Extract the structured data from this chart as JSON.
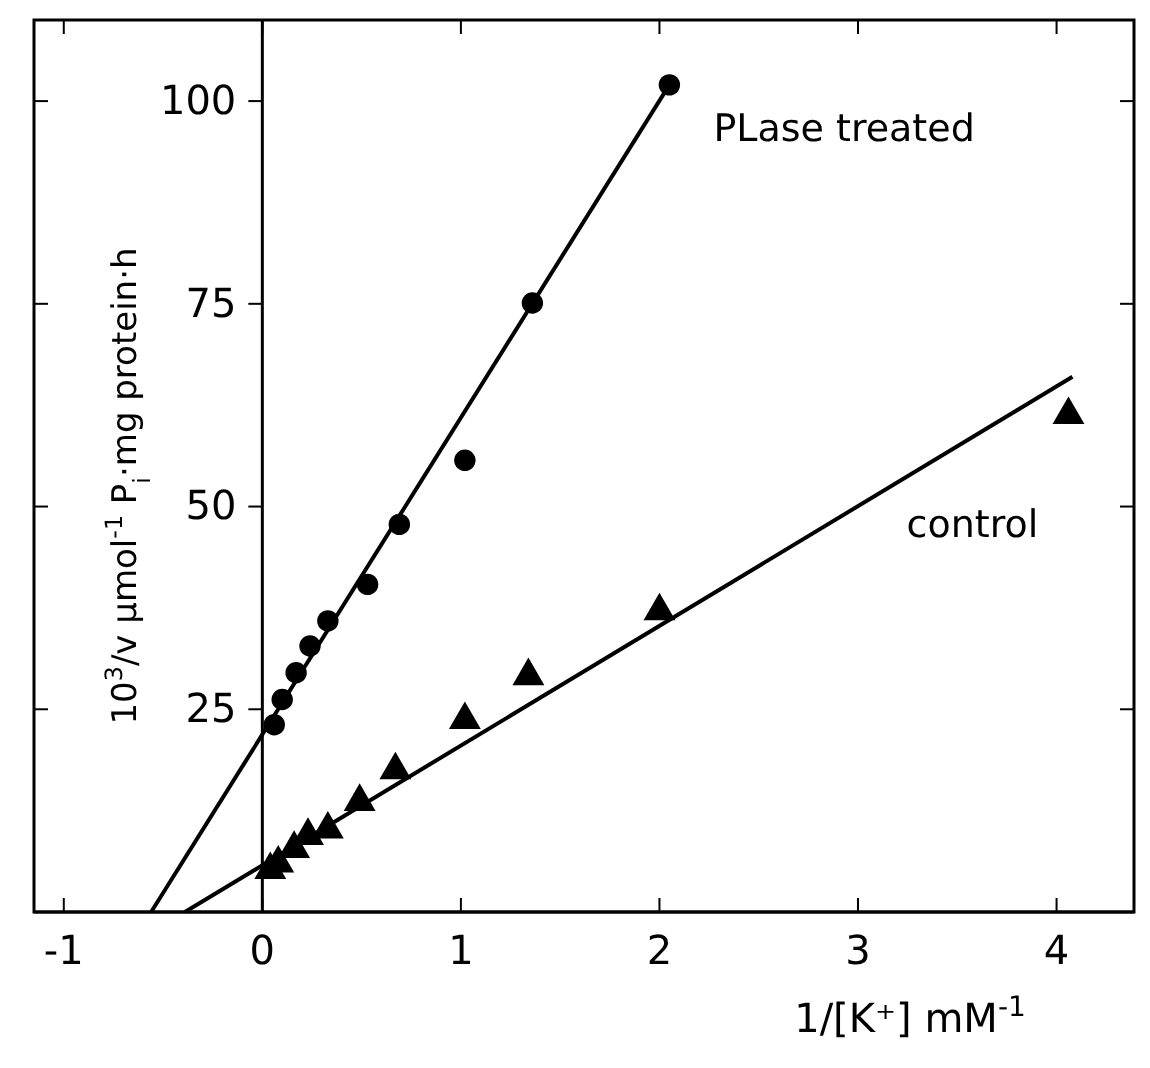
{
  "chart_data": {
    "type": "scatter",
    "xlabel": "1/[K⁺]  mM$^{-1}$",
    "ylabel": "10$^{3}$/v μmol$^{-1}$ P$_{i}$·mg protein·h",
    "xlim": [
      -1.15,
      4.39
    ],
    "ylim": [
      0,
      110
    ],
    "xticks": [
      -1,
      0,
      1,
      2,
      3,
      4
    ],
    "yticks": [
      {
        "value": 0,
        "label": null
      },
      25,
      50,
      75,
      100
    ],
    "grid": false,
    "legend": "right",
    "series": [
      {
        "name": "PLase treated",
        "marker": "circle",
        "color": "#000000",
        "x": [
          0.06,
          0.1,
          0.17,
          0.24,
          0.33,
          0.53,
          0.69,
          1.02,
          1.36,
          2.05
        ],
        "values": [
          23.1,
          26.2,
          29.5,
          32.8,
          35.9,
          40.4,
          47.8,
          55.7,
          75.1,
          102
        ]
      },
      {
        "name": "control",
        "marker": "triangle",
        "color": "#000000",
        "x": [
          0.04,
          0.08,
          0.16,
          0.23,
          0.33,
          0.49,
          0.67,
          1.02,
          1.34,
          2.0,
          4.06
        ],
        "values": [
          5.2,
          6.0,
          7.8,
          9.4,
          10.2,
          13.6,
          17.5,
          23.7,
          29.1,
          37.1,
          61.3
        ]
      },
      {
        "type": "line",
        "marker": "none",
        "line_style": "solid",
        "color": "#000000",
        "x": [
          -0.56,
          2.05
        ],
        "values": [
          0,
          102
        ]
      },
      {
        "type": "line",
        "marker": "none",
        "line_style": "solid",
        "color": "#000000",
        "x": [
          -0.39,
          4.08
        ],
        "values": [
          0,
          66
        ]
      }
    ]
  }
}
